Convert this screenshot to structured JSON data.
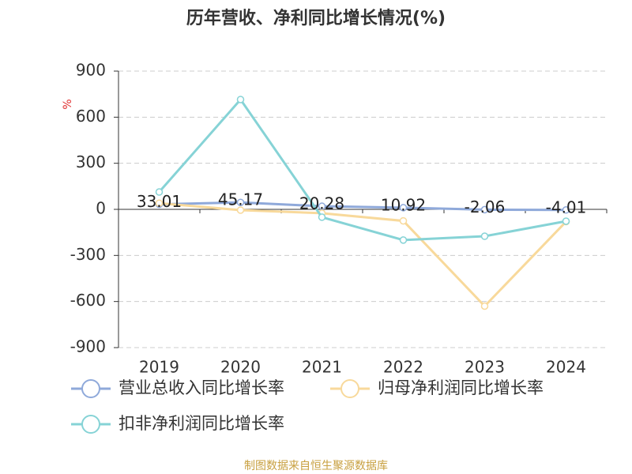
{
  "chart_data": {
    "type": "line",
    "title": "历年营收、净利同比增长情况(%)",
    "y_unit": "%",
    "source": "制图数据来自恒生聚源数据库",
    "categories": [
      "2019",
      "2020",
      "2021",
      "2022",
      "2023",
      "2024"
    ],
    "series": [
      {
        "name": "营业总收入同比增长率",
        "color": "#8fa9da",
        "values": [
          33.01,
          45.17,
          20.28,
          10.92,
          -2.06,
          -4.01
        ],
        "show_labels": true
      },
      {
        "name": "归母净利润同比增长率",
        "color": "#f8d99b",
        "values": [
          40,
          -5,
          -25,
          -75,
          -630,
          -80
        ],
        "show_labels": false
      },
      {
        "name": "扣非净利润同比增长率",
        "color": "#86d3d6",
        "values": [
          113,
          715,
          -51,
          -200,
          -175,
          -77
        ],
        "show_labels": false
      }
    ],
    "ylim": [
      -900,
      900
    ],
    "yticks": [
      -900,
      -600,
      -300,
      0,
      300,
      600,
      900
    ],
    "grid": true
  }
}
